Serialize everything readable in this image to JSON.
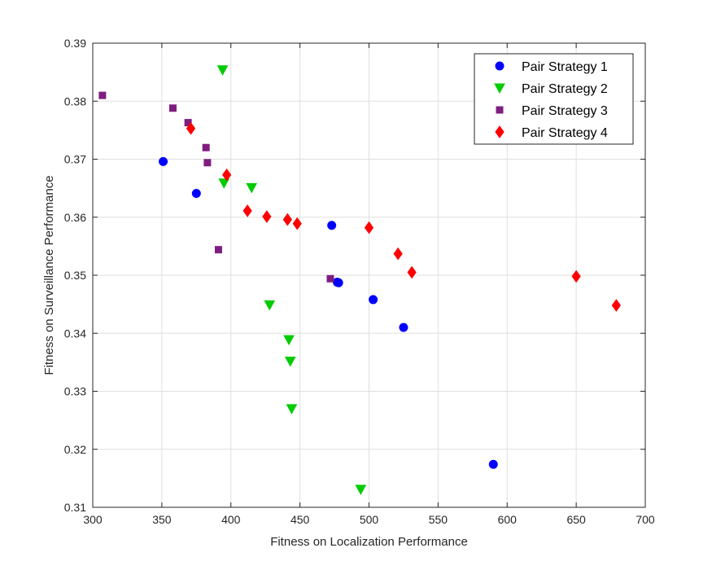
{
  "chart_data": {
    "type": "scatter",
    "title": "",
    "xlabel": "Fitness on Localization Performance",
    "ylabel": "Fitness on Surveillance Performance",
    "xlim": [
      300,
      700
    ],
    "ylim": [
      0.31,
      0.39
    ],
    "xticks": [
      300,
      350,
      400,
      450,
      500,
      550,
      600,
      650,
      700
    ],
    "yticks": [
      0.31,
      0.32,
      0.33,
      0.34,
      0.35,
      0.36,
      0.37,
      0.38,
      0.39
    ],
    "xtick_labels": [
      "300",
      "350",
      "400",
      "450",
      "500",
      "550",
      "600",
      "650",
      "700"
    ],
    "ytick_labels": [
      "0.31",
      "0.32",
      "0.33",
      "0.34",
      "0.35",
      "0.36",
      "0.37",
      "0.38",
      "0.39"
    ],
    "grid": true,
    "legend_position": "top-right",
    "series": [
      {
        "name": "Pair Strategy 1",
        "marker": "circle",
        "color": "#0000ff",
        "points": [
          [
            351,
            0.3696
          ],
          [
            375,
            0.3641
          ],
          [
            473,
            0.3586
          ],
          [
            477,
            0.3488
          ],
          [
            478,
            0.3487
          ],
          [
            503,
            0.3458
          ],
          [
            525,
            0.341
          ],
          [
            590,
            0.3174
          ]
        ]
      },
      {
        "name": "Pair Strategy 2",
        "marker": "triangle-down",
        "color": "#00cc00",
        "points": [
          [
            394,
            0.3854
          ],
          [
            395,
            0.3659
          ],
          [
            415,
            0.3651
          ],
          [
            428,
            0.3449
          ],
          [
            442,
            0.3389
          ],
          [
            443,
            0.3352
          ],
          [
            444,
            0.327
          ],
          [
            494,
            0.3131
          ]
        ]
      },
      {
        "name": "Pair Strategy 3",
        "marker": "square",
        "color": "#7e1e80",
        "points": [
          [
            307,
            0.381
          ],
          [
            358,
            0.3788
          ],
          [
            369,
            0.3763
          ],
          [
            382,
            0.372
          ],
          [
            383,
            0.3694
          ],
          [
            391,
            0.3544
          ],
          [
            472,
            0.3494
          ]
        ]
      },
      {
        "name": "Pair Strategy 4",
        "marker": "diamond",
        "color": "#ff0000",
        "points": [
          [
            371,
            0.3753
          ],
          [
            397,
            0.3673
          ],
          [
            412,
            0.3611
          ],
          [
            426,
            0.3601
          ],
          [
            441,
            0.3596
          ],
          [
            448,
            0.3589
          ],
          [
            500,
            0.3582
          ],
          [
            521,
            0.3537
          ],
          [
            531,
            0.3505
          ],
          [
            650,
            0.3498
          ],
          [
            679,
            0.3448
          ]
        ]
      }
    ]
  }
}
